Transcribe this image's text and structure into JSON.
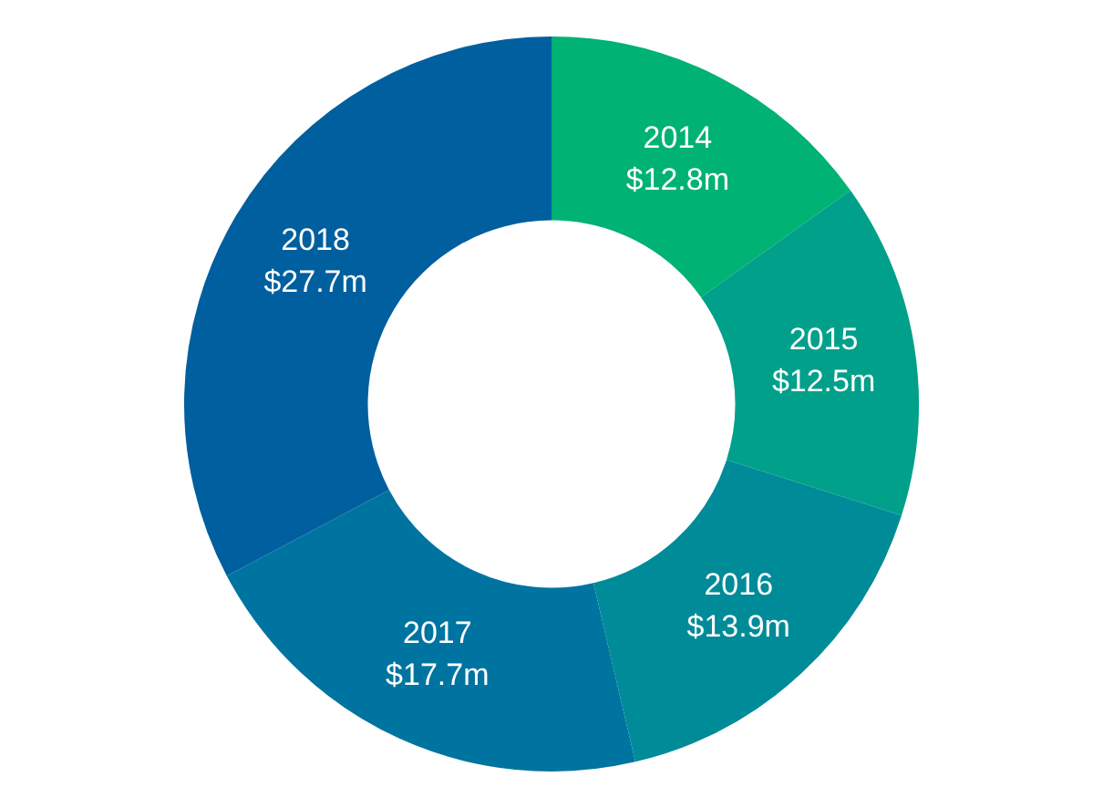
{
  "chart_data": {
    "type": "donut",
    "categories": [
      "2014",
      "2015",
      "2016",
      "2017",
      "2018"
    ],
    "values": [
      12.8,
      12.5,
      13.9,
      17.7,
      27.7
    ],
    "colors": [
      "#00b274",
      "#00a08a",
      "#008b98",
      "#0074a0",
      "#005f9e"
    ],
    "value_labels": [
      "$12.8m",
      "$12.5m",
      "$13.9m",
      "$17.7m",
      "$27.7m"
    ],
    "legend": false
  }
}
